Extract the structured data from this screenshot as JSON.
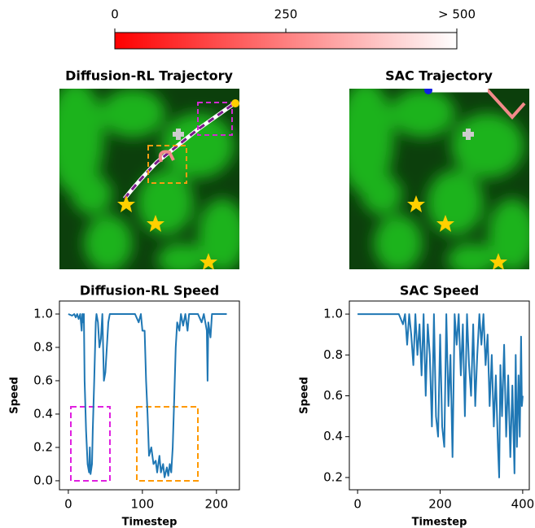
{
  "chart_data": [
    {
      "type": "colorbar",
      "lim": [
        0,
        500
      ],
      "colors": [
        "#ff0000",
        "#ffffff"
      ],
      "ticks": [
        0,
        250,
        {
          "value": 500,
          "label": "> 500"
        }
      ]
    },
    {
      "type": "image",
      "title": "Diffusion-RL Trajectory"
    },
    {
      "type": "image",
      "title": "SAC Trajectory"
    },
    {
      "type": "line",
      "title": "Diffusion-RL Speed",
      "xlabel": "Timestep",
      "ylabel": "Speed",
      "color": "#1f77b4",
      "xlim": [
        -12,
        231
      ],
      "ylim": [
        -0.054,
        1.078
      ],
      "xticks": [
        0,
        100,
        200
      ],
      "yticks": [
        {
          "value": 0,
          "label": "0.0"
        },
        0.2,
        0.4,
        0.6,
        0.8,
        {
          "value": 1,
          "label": "1.0"
        }
      ],
      "x": [
        0,
        5,
        8,
        10,
        12,
        14,
        16,
        18,
        19,
        20,
        21,
        22,
        24,
        26,
        28,
        29,
        30,
        32,
        33,
        35,
        37,
        38,
        40,
        42,
        44,
        46,
        48,
        50,
        52,
        54,
        56,
        60,
        70,
        80,
        90,
        95,
        98,
        100,
        103,
        105,
        107,
        109,
        112,
        115,
        118,
        120,
        123,
        125,
        128,
        130,
        133,
        135,
        137,
        139,
        141,
        143,
        145,
        147,
        150,
        152,
        155,
        158,
        161,
        163,
        168,
        172,
        175,
        180,
        183,
        187,
        188,
        189,
        192,
        194,
        200,
        205,
        210,
        214
      ],
      "values": [
        1,
        0.99,
        1,
        0.98,
        1,
        0.97,
        1,
        0.9,
        1,
        0.95,
        1,
        0.6,
        0.3,
        0.1,
        0.05,
        0.2,
        0.04,
        0.1,
        0.3,
        0.6,
        0.95,
        1,
        0.95,
        0.8,
        0.85,
        1,
        0.6,
        0.65,
        0.8,
        0.95,
        1,
        1,
        1,
        1,
        1,
        0.95,
        1,
        0.9,
        0.9,
        0.6,
        0.4,
        0.15,
        0.2,
        0.1,
        0.12,
        0.05,
        0.15,
        0.05,
        0.1,
        0.02,
        0.08,
        0.03,
        0.1,
        0.05,
        0.2,
        0.5,
        0.8,
        0.95,
        0.9,
        1,
        0.93,
        1,
        0.9,
        1,
        1,
        1,
        1,
        0.95,
        1,
        0.9,
        0.6,
        0.95,
        0.86,
        1,
        1,
        1,
        1,
        1
      ]
    },
    {
      "type": "line",
      "title": "SAC Speed",
      "xlabel": "Timestep",
      "ylabel": "Speed",
      "color": "#1f77b4",
      "xlim": [
        -20,
        416
      ],
      "ylim": [
        0.14,
        1.064
      ],
      "xticks": [
        0,
        200,
        400
      ],
      "yticks": [
        0.2,
        0.4,
        0.6,
        0.8,
        {
          "value": 1,
          "label": "1.0"
        }
      ],
      "x": [
        0,
        50,
        100,
        110,
        115,
        120,
        125,
        130,
        135,
        140,
        145,
        150,
        155,
        160,
        165,
        170,
        175,
        180,
        185,
        190,
        195,
        200,
        205,
        210,
        215,
        220,
        225,
        230,
        235,
        240,
        245,
        250,
        255,
        260,
        265,
        270,
        275,
        280,
        285,
        290,
        295,
        300,
        305,
        310,
        315,
        320,
        325,
        330,
        335,
        340,
        343,
        346,
        350,
        355,
        360,
        365,
        370,
        375,
        380,
        383,
        386,
        390,
        393,
        396,
        398,
        400
      ],
      "values": [
        1,
        1,
        1,
        0.95,
        1,
        0.85,
        1,
        0.9,
        0.75,
        1,
        0.8,
        0.95,
        0.7,
        1,
        0.6,
        0.95,
        0.8,
        0.45,
        1,
        0.5,
        0.4,
        0.9,
        0.45,
        0.35,
        1,
        0.55,
        0.8,
        0.3,
        1,
        0.85,
        1,
        0.7,
        0.95,
        0.5,
        1,
        0.75,
        0.6,
        0.95,
        0.55,
        0.8,
        1,
        0.85,
        1,
        0.75,
        0.9,
        0.55,
        0.8,
        0.45,
        0.7,
        0.35,
        0.2,
        0.75,
        0.5,
        0.85,
        0.4,
        0.7,
        0.3,
        0.65,
        0.22,
        0.8,
        0.35,
        0.7,
        0.4,
        0.89,
        0.55,
        0.6
      ]
    }
  ]
}
